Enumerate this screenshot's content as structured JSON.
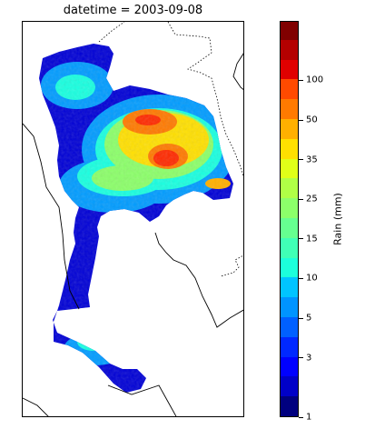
{
  "title": "datetime = 2003-09-08",
  "colorbar": {
    "label": "Rain (mm)",
    "tick_labels": [
      "1",
      "3",
      "5",
      "10",
      "15",
      "25",
      "35",
      "50",
      "100"
    ],
    "colors": [
      "#00007f",
      "#0000c8",
      "#0000ff",
      "#0028ff",
      "#0060ff",
      "#0094ff",
      "#00c4ff",
      "#1cffdb",
      "#40ffb6",
      "#66ff90",
      "#8cff6a",
      "#b0ff46",
      "#e0ff18",
      "#ffe000",
      "#ffb000",
      "#ff7a00",
      "#ff4a00",
      "#e00000",
      "#b40000",
      "#800000"
    ]
  },
  "map": {
    "boundary_color": "#000000",
    "rain_colors": {
      "low": "#0000d6",
      "mid_low": "#009cff",
      "mid": "#19ffe0",
      "mid_high": "#8cff6a",
      "high": "#ffe000",
      "very_high": "#ff7a00",
      "max": "#ff2a00"
    }
  }
}
